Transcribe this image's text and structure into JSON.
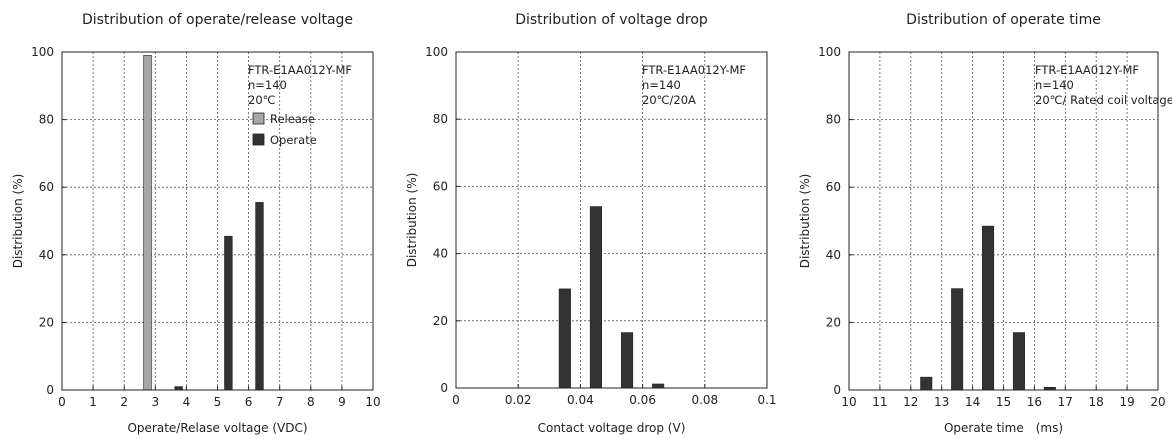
{
  "colors": {
    "operate": "#333333",
    "release": "#a6a6a6",
    "axis": "#222222"
  },
  "chart_data": [
    {
      "type": "bar",
      "title": "Distribution of operate/release voltage",
      "xlabel": "Operate/Relase voltage (VDC)",
      "ylabel": "Distribution (%)",
      "xlim": [
        0,
        10
      ],
      "ylim": [
        0,
        100
      ],
      "xticks": [
        0,
        1,
        2,
        3,
        4,
        5,
        6,
        7,
        8,
        9,
        10
      ],
      "xtick_labels": [
        "0",
        "1",
        "2",
        "3",
        "4",
        "5",
        "6",
        "7",
        "8",
        "9",
        "10"
      ],
      "yticks": [
        0,
        20,
        40,
        60,
        80,
        100
      ],
      "ytick_labels": [
        "0",
        "20",
        "40",
        "60",
        "80",
        "100"
      ],
      "bar_width": 0.25,
      "grid": true,
      "annotation": [
        "FTR-E1AA012Y-MF",
        "n=140",
        "20℃"
      ],
      "legend": {
        "position": "top-right",
        "entries": [
          "Release",
          "Operate"
        ]
      },
      "series": [
        {
          "name": "Release",
          "color": "#a6a6a6",
          "x": [
            2.75
          ],
          "values": [
            99
          ]
        },
        {
          "name": "Operate",
          "color": "#333333",
          "x": [
            3.75,
            5.35,
            6.35
          ],
          "values": [
            1,
            45.5,
            55.5
          ]
        }
      ]
    },
    {
      "type": "bar",
      "title": "Distribution of voltage drop",
      "xlabel": "Contact voltage drop (V)",
      "ylabel": "Distribution (%)",
      "xlim": [
        0,
        0.1
      ],
      "ylim": [
        0,
        100
      ],
      "xticks": [
        0,
        0.02,
        0.04,
        0.06,
        0.08,
        0.1
      ],
      "xtick_labels": [
        "0",
        "0.02",
        "0.04",
        "0.06",
        "0.08",
        "0.1"
      ],
      "yticks": [
        0,
        20,
        40,
        60,
        80,
        100
      ],
      "ytick_labels": [
        "0",
        "20",
        "40",
        "60",
        "80",
        "100"
      ],
      "bar_width": 0.0037,
      "grid": true,
      "annotation": [
        "FTR-E1AA012Y-MF",
        "n=140",
        "20℃/20A"
      ],
      "series": [
        {
          "color": "#333333",
          "x": [
            0.035,
            0.045,
            0.055,
            0.065
          ],
          "values": [
            29.5,
            54,
            16.5,
            1.2
          ]
        }
      ]
    },
    {
      "type": "bar",
      "title": "Distribution of operate time",
      "xlabel": "Operate time　(ms)",
      "ylabel": "Distribution (%)",
      "xlim": [
        10,
        20
      ],
      "ylim": [
        0,
        100
      ],
      "xticks": [
        10,
        11,
        12,
        13,
        14,
        15,
        16,
        17,
        18,
        19,
        20
      ],
      "xtick_labels": [
        "10",
        "11",
        "12",
        "13",
        "14",
        "15",
        "16",
        "17",
        "18",
        "19",
        "20"
      ],
      "yticks": [
        0,
        20,
        40,
        60,
        80,
        100
      ],
      "ytick_labels": [
        "0",
        "20",
        "40",
        "60",
        "80",
        "100"
      ],
      "bar_width": 0.37,
      "grid": true,
      "annotation": [
        "FTR-E1AA012Y-MF",
        "n=140",
        "20℃/ Rated coil voltage"
      ],
      "series": [
        {
          "color": "#333333",
          "x": [
            12.5,
            13.5,
            14.5,
            15.5,
            16.5
          ],
          "values": [
            3.8,
            30,
            48.5,
            17,
            0.8
          ]
        }
      ]
    }
  ]
}
